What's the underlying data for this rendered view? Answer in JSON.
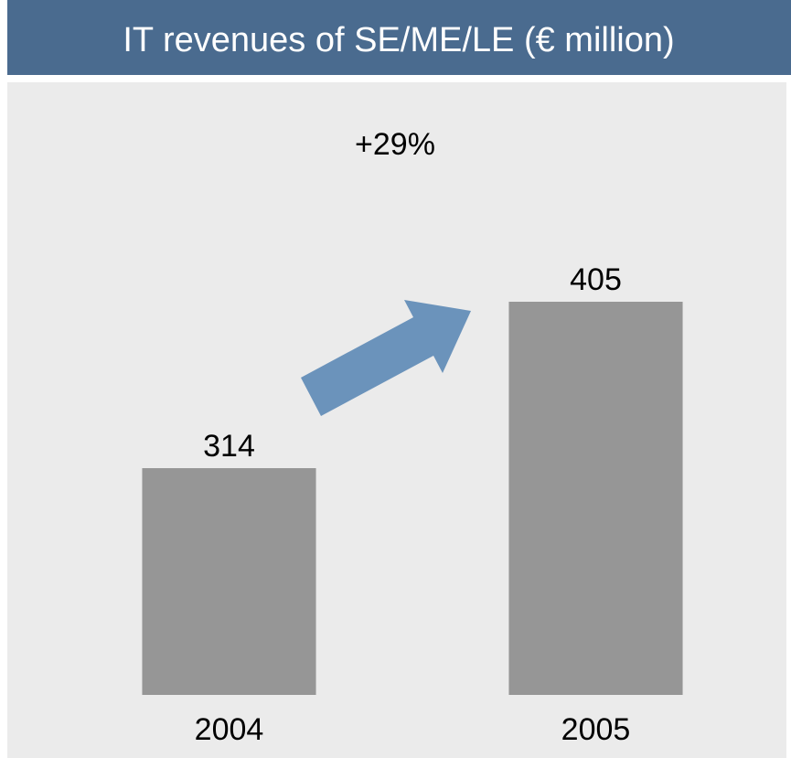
{
  "chart_data": {
    "type": "bar",
    "title": "IT revenues of SE/ME/LE (€ million)",
    "annotation": "+29%",
    "categories": [
      "2004",
      "2005"
    ],
    "values": [
      314,
      405
    ],
    "color": "#969696",
    "ylim": [
      190,
      525
    ]
  }
}
